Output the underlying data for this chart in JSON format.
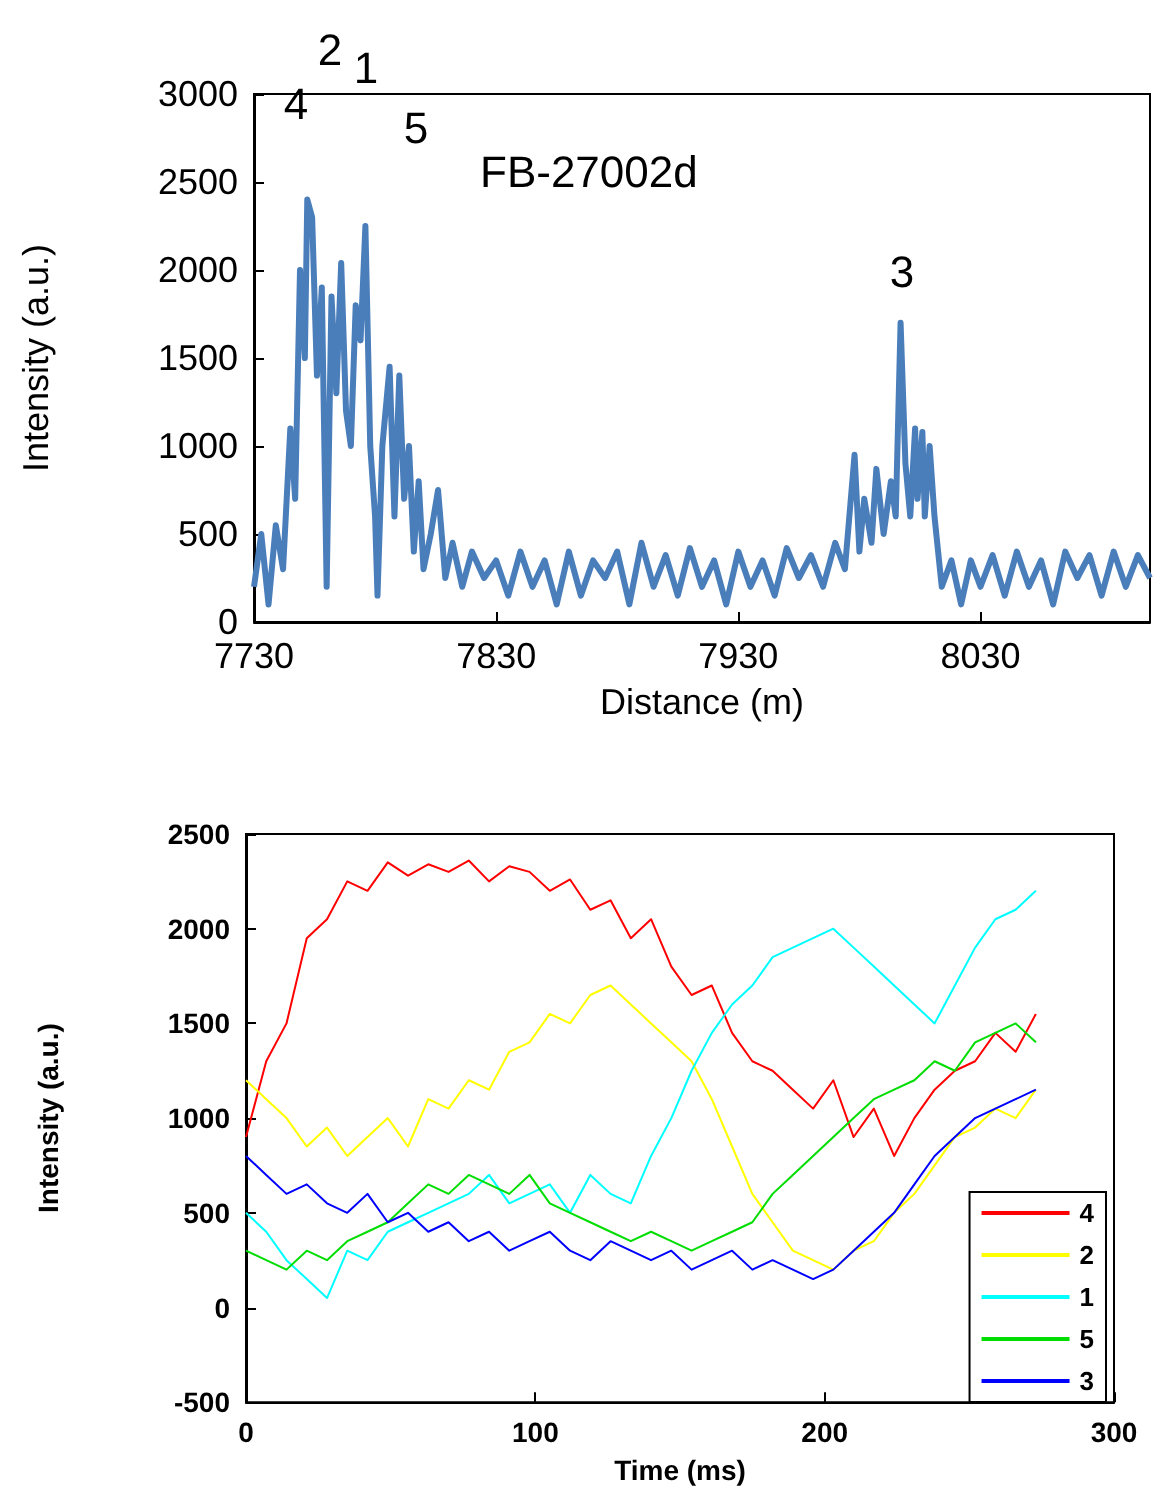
{
  "chart_data": [
    {
      "type": "line",
      "title": "FB-27002d",
      "xlabel": "Distance (m)",
      "ylabel": "Intensity (a.u.)",
      "x": [
        7730,
        7733,
        7736,
        7739,
        7742,
        7745,
        7747,
        7749,
        7751,
        7752,
        7754,
        7756,
        7758,
        7760,
        7762,
        7764,
        7766,
        7768,
        7770,
        7772,
        7774,
        7776,
        7778,
        7780,
        7781,
        7783,
        7786,
        7788,
        7790,
        7792,
        7794,
        7796,
        7798,
        7800,
        7803,
        7806,
        7809,
        7812,
        7816,
        7820,
        7825,
        7830,
        7835,
        7840,
        7845,
        7850,
        7855,
        7860,
        7865,
        7870,
        7875,
        7880,
        7885,
        7890,
        7895,
        7900,
        7905,
        7910,
        7915,
        7920,
        7925,
        7930,
        7935,
        7940,
        7945,
        7950,
        7955,
        7960,
        7965,
        7970,
        7974,
        7978,
        7980,
        7982,
        7985,
        7987,
        7990,
        7993,
        7995,
        7997,
        7999,
        8001,
        8003,
        8004,
        8006,
        8007,
        8009,
        8011,
        8014,
        8018,
        8022,
        8026,
        8030,
        8035,
        8040,
        8045,
        8050,
        8055,
        8060,
        8065,
        8070,
        8075,
        8080,
        8085,
        8090,
        8095,
        8100
      ],
      "series": [
        {
          "color": "#4a7ebb",
          "values": [
            200,
            500,
            100,
            550,
            300,
            1100,
            700,
            2000,
            1500,
            2400,
            2300,
            1400,
            1900,
            200,
            1850,
            1300,
            2040,
            1200,
            1000,
            1800,
            1600,
            2250,
            1000,
            600,
            150,
            1000,
            1450,
            600,
            1400,
            700,
            1000,
            400,
            800,
            300,
            500,
            750,
            250,
            450,
            200,
            400,
            250,
            350,
            150,
            400,
            200,
            350,
            100,
            400,
            150,
            350,
            250,
            400,
            100,
            450,
            200,
            380,
            150,
            420,
            200,
            350,
            100,
            400,
            200,
            350,
            150,
            420,
            250,
            380,
            200,
            450,
            300,
            950,
            400,
            700,
            450,
            870,
            500,
            800,
            600,
            1700,
            900,
            600,
            1100,
            700,
            1080,
            600,
            1000,
            600,
            200,
            350,
            100,
            350,
            200,
            380,
            150,
            400,
            200,
            350,
            100,
            400,
            250,
            380,
            150,
            400,
            200,
            380,
            250
          ]
        }
      ],
      "xlim": [
        7730,
        8100
      ],
      "xticks": [
        7730,
        7830,
        7930,
        8030
      ],
      "ylim": [
        0,
        3000
      ],
      "yticks": [
        0,
        500,
        1000,
        1500,
        2000,
        2500,
        3000
      ],
      "annotations": [
        "4",
        "2",
        "1",
        "5",
        "3"
      ]
    },
    {
      "type": "line",
      "xlabel": "Time (ms)",
      "ylabel": "Intensity (a.u.)",
      "x": [
        0,
        7,
        14,
        21,
        28,
        35,
        42,
        49,
        56,
        63,
        70,
        77,
        84,
        91,
        98,
        105,
        112,
        119,
        126,
        133,
        140,
        147,
        154,
        161,
        168,
        175,
        182,
        189,
        196,
        203,
        210,
        217,
        224,
        231,
        238,
        245,
        252,
        259,
        266,
        273
      ],
      "series": [
        {
          "name": "4",
          "color": "#ff0000",
          "values": [
            900,
            1300,
            1500,
            1950,
            2050,
            2250,
            2200,
            2350,
            2280,
            2340,
            2300,
            2360,
            2250,
            2330,
            2300,
            2200,
            2260,
            2100,
            2150,
            1950,
            2050,
            1800,
            1650,
            1700,
            1450,
            1300,
            1250,
            1150,
            1050,
            1200,
            900,
            1050,
            800,
            1000,
            1150,
            1250,
            1300,
            1450,
            1350,
            1550
          ]
        },
        {
          "name": "2",
          "color": "#ffff00",
          "values": [
            1200,
            1100,
            1000,
            850,
            950,
            800,
            900,
            1000,
            850,
            1100,
            1050,
            1200,
            1150,
            1350,
            1400,
            1550,
            1500,
            1650,
            1700,
            1600,
            1500,
            1400,
            1300,
            1100,
            850,
            600,
            450,
            300,
            250,
            200,
            300,
            350,
            500,
            600,
            750,
            900,
            950,
            1050,
            1000,
            1150
          ]
        },
        {
          "name": "1",
          "color": "#00ffff",
          "values": [
            500,
            400,
            250,
            150,
            50,
            300,
            250,
            400,
            450,
            500,
            550,
            600,
            700,
            550,
            600,
            650,
            500,
            700,
            600,
            550,
            800,
            1000,
            1250,
            1450,
            1600,
            1700,
            1850,
            1900,
            1950,
            2000,
            1900,
            1800,
            1700,
            1600,
            1500,
            1700,
            1900,
            2050,
            2100,
            2200
          ]
        },
        {
          "name": "5",
          "color": "#00dd00",
          "values": [
            300,
            250,
            200,
            300,
            250,
            350,
            400,
            450,
            550,
            650,
            600,
            700,
            650,
            600,
            700,
            550,
            500,
            450,
            400,
            350,
            400,
            350,
            300,
            350,
            400,
            450,
            600,
            700,
            800,
            900,
            1000,
            1100,
            1150,
            1200,
            1300,
            1250,
            1400,
            1450,
            1500,
            1400
          ]
        },
        {
          "name": "3",
          "color": "#0000ff",
          "values": [
            800,
            700,
            600,
            650,
            550,
            500,
            600,
            450,
            500,
            400,
            450,
            350,
            400,
            300,
            350,
            400,
            300,
            250,
            350,
            300,
            250,
            300,
            200,
            250,
            300,
            200,
            250,
            200,
            150,
            200,
            300,
            400,
            500,
            650,
            800,
            900,
            1000,
            1050,
            1100,
            1150
          ]
        }
      ],
      "xlim": [
        0,
        300
      ],
      "xticks": [
        0,
        100,
        200,
        300
      ],
      "ylim": [
        -500,
        2500
      ],
      "yticks": [
        -500,
        0,
        500,
        1000,
        1500,
        2000,
        2500
      ],
      "legend": "bottom right"
    }
  ]
}
